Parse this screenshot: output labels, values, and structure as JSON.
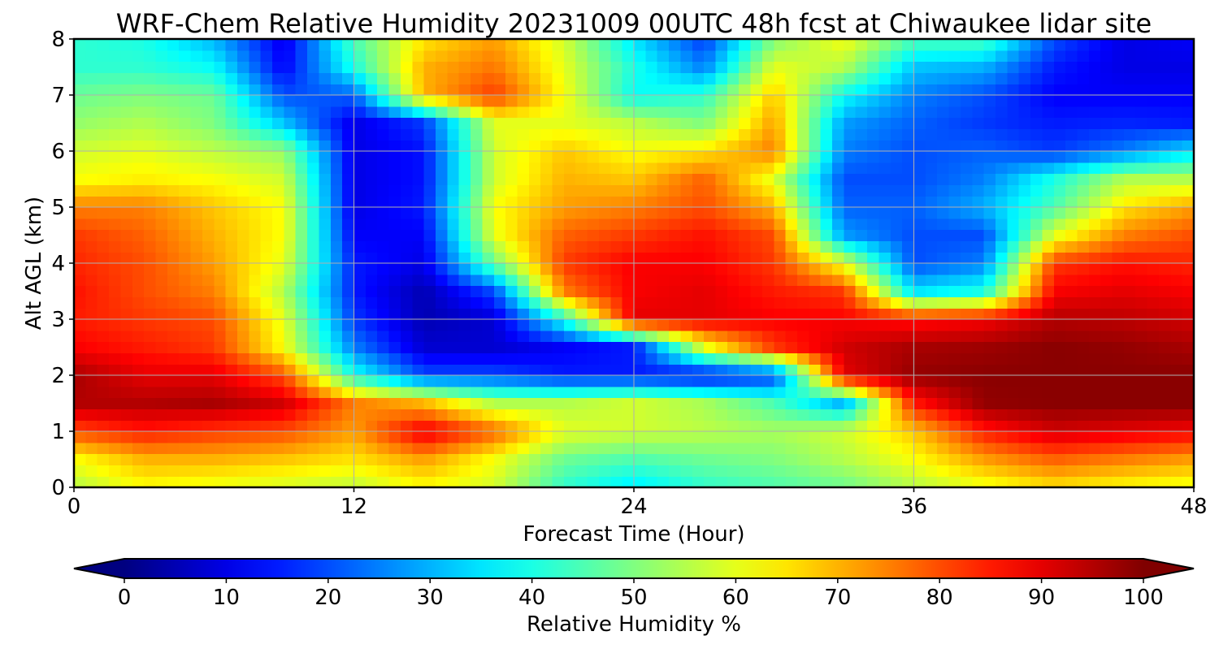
{
  "chart_data": {
    "type": "heatmap",
    "title": "WRF-Chem Relative Humidity 20231009 00UTC 48h fcst at Chiwaukee lidar site",
    "xlabel": "Forecast Time (Hour)",
    "ylabel": "Alt AGL (km)",
    "xlim": [
      0,
      48
    ],
    "ylim": [
      0,
      8
    ],
    "xticks": [
      0,
      12,
      24,
      36,
      48
    ],
    "xtick_labels": [
      "0",
      "12",
      "24",
      "36",
      "48"
    ],
    "yticks": [
      0,
      1,
      2,
      3,
      4,
      5,
      6,
      7,
      8
    ],
    "ytick_labels": [
      "0",
      "1",
      "2",
      "3",
      "4",
      "5",
      "6",
      "7",
      "8"
    ],
    "grid": true,
    "colormap": "jet",
    "colorbar": {
      "label": "Relative Humidity %",
      "range": [
        0,
        100
      ],
      "ticks": [
        0,
        10,
        20,
        30,
        40,
        50,
        60,
        70,
        80,
        90,
        100
      ],
      "tick_labels": [
        "0",
        "10",
        "20",
        "30",
        "40",
        "50",
        "60",
        "70",
        "80",
        "90",
        "100"
      ],
      "orientation": "horizontal",
      "extend": "both"
    },
    "x": [
      0,
      3,
      6,
      9,
      12,
      15,
      18,
      21,
      24,
      27,
      30,
      33,
      36,
      39,
      42,
      45,
      48
    ],
    "y": [
      0,
      0.5,
      1,
      1.5,
      2,
      2.5,
      3,
      3.5,
      4,
      4.5,
      5,
      5.5,
      6,
      6.5,
      7,
      7.5,
      8
    ],
    "z": [
      [
        55,
        62,
        60,
        58,
        56,
        62,
        58,
        42,
        35,
        42,
        45,
        48,
        55,
        60,
        65,
        62,
        60
      ],
      [
        62,
        70,
        70,
        68,
        65,
        72,
        62,
        48,
        45,
        48,
        50,
        55,
        62,
        72,
        78,
        75,
        72
      ],
      [
        80,
        85,
        82,
        80,
        72,
        90,
        78,
        60,
        58,
        56,
        54,
        58,
        68,
        85,
        92,
        90,
        88
      ],
      [
        95,
        95,
        96,
        92,
        75,
        70,
        55,
        55,
        58,
        54,
        45,
        30,
        85,
        98,
        99,
        99,
        99
      ],
      [
        96,
        90,
        90,
        80,
        40,
        20,
        20,
        15,
        15,
        12,
        18,
        90,
        98,
        99,
        99,
        99,
        99
      ],
      [
        88,
        85,
        82,
        62,
        25,
        8,
        8,
        12,
        15,
        60,
        82,
        92,
        96,
        97,
        99,
        98,
        96
      ],
      [
        85,
        82,
        80,
        60,
        18,
        5,
        8,
        40,
        90,
        90,
        88,
        88,
        86,
        88,
        95,
        94,
        92
      ],
      [
        86,
        80,
        75,
        55,
        15,
        5,
        20,
        75,
        88,
        90,
        85,
        82,
        35,
        40,
        88,
        90,
        88
      ],
      [
        84,
        80,
        72,
        60,
        15,
        10,
        48,
        82,
        88,
        88,
        82,
        60,
        20,
        25,
        82,
        86,
        84
      ],
      [
        82,
        78,
        70,
        62,
        12,
        12,
        60,
        78,
        82,
        86,
        80,
        28,
        20,
        20,
        60,
        75,
        80
      ],
      [
        75,
        75,
        68,
        62,
        10,
        15,
        62,
        72,
        75,
        80,
        70,
        22,
        22,
        30,
        45,
        65,
        72
      ],
      [
        62,
        64,
        62,
        58,
        10,
        14,
        58,
        70,
        68,
        78,
        60,
        20,
        20,
        25,
        40,
        55,
        55
      ],
      [
        58,
        60,
        56,
        52,
        10,
        14,
        58,
        68,
        62,
        65,
        75,
        25,
        20,
        22,
        18,
        25,
        35
      ],
      [
        52,
        55,
        50,
        32,
        10,
        18,
        60,
        60,
        56,
        50,
        72,
        28,
        22,
        18,
        15,
        16,
        15
      ],
      [
        48,
        50,
        48,
        20,
        22,
        70,
        82,
        62,
        38,
        42,
        68,
        38,
        25,
        20,
        12,
        12,
        12
      ],
      [
        42,
        42,
        38,
        12,
        40,
        70,
        76,
        60,
        40,
        25,
        60,
        55,
        32,
        30,
        15,
        10,
        10
      ],
      [
        42,
        40,
        30,
        10,
        45,
        65,
        72,
        58,
        35,
        18,
        50,
        62,
        45,
        45,
        20,
        10,
        12
      ]
    ]
  }
}
